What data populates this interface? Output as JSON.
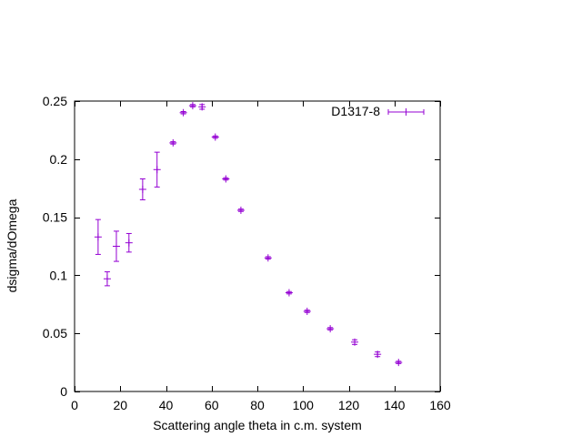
{
  "chart_data": {
    "type": "scatter",
    "xlabel": "Scattering angle theta in c.m. system",
    "ylabel": "dsigma/dOmega",
    "xlim": [
      0,
      160
    ],
    "ylim": [
      0,
      0.25
    ],
    "x_ticks": [
      0,
      20,
      40,
      60,
      80,
      100,
      120,
      140,
      160
    ],
    "y_ticks": [
      0,
      0.05,
      0.1,
      0.15,
      0.2,
      0.25
    ],
    "x_tick_labels": [
      "0",
      "20",
      "40",
      "60",
      "80",
      "100",
      "120",
      "140",
      "160"
    ],
    "y_tick_labels": [
      "0",
      "0.05",
      "0.1",
      "0.15",
      "0.2",
      "0.25"
    ],
    "legend_position": "top-right",
    "grid": false,
    "series": [
      {
        "name": "D1317-8",
        "color": "#9400d3",
        "error_bars": "y",
        "points": [
          {
            "x": 10.3,
            "y": 0.133,
            "err": 0.015
          },
          {
            "x": 14.3,
            "y": 0.097,
            "err": 0.006
          },
          {
            "x": 18.3,
            "y": 0.125,
            "err": 0.013
          },
          {
            "x": 23.8,
            "y": 0.128,
            "err": 0.008
          },
          {
            "x": 29.8,
            "y": 0.174,
            "err": 0.009
          },
          {
            "x": 36.1,
            "y": 0.191,
            "err": 0.015
          },
          {
            "x": 43.1,
            "y": 0.214,
            "err": 0.001
          },
          {
            "x": 47.6,
            "y": 0.24,
            "err": 0.001
          },
          {
            "x": 51.7,
            "y": 0.246,
            "err": 0.001
          },
          {
            "x": 55.8,
            "y": 0.245,
            "err": 0.002
          },
          {
            "x": 61.6,
            "y": 0.219,
            "err": 0.001
          },
          {
            "x": 66.2,
            "y": 0.183,
            "err": 0.001
          },
          {
            "x": 72.8,
            "y": 0.156,
            "err": 0.001
          },
          {
            "x": 84.7,
            "y": 0.115,
            "err": 0.001
          },
          {
            "x": 93.9,
            "y": 0.085,
            "err": 0.001
          },
          {
            "x": 101.8,
            "y": 0.069,
            "err": 0.001
          },
          {
            "x": 111.9,
            "y": 0.054,
            "err": 0.001
          },
          {
            "x": 122.6,
            "y": 0.0425,
            "err": 0.002
          },
          {
            "x": 132.6,
            "y": 0.032,
            "err": 0.002
          },
          {
            "x": 141.8,
            "y": 0.025,
            "err": 0.001
          }
        ]
      }
    ]
  }
}
